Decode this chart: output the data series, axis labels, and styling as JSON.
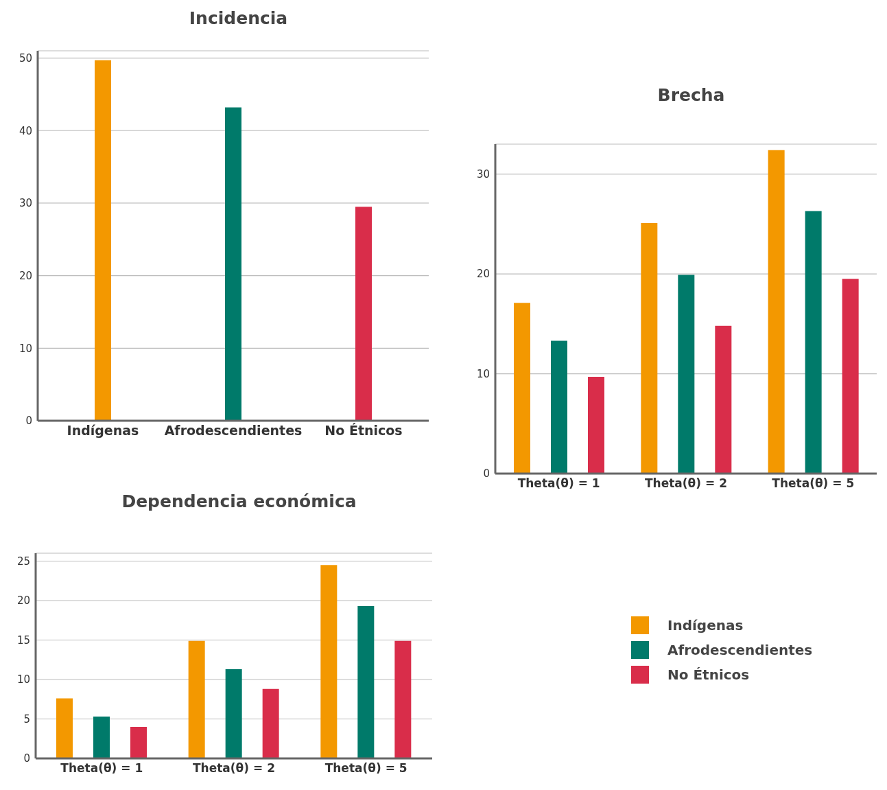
{
  "chart_data": [
    {
      "type": "bar",
      "title": "Incidencia",
      "categories": [
        "Indígenas",
        "Afrodescendientes",
        "No Étnicos"
      ],
      "values": [
        49.7,
        43.2,
        29.5
      ],
      "colors": [
        "#f39800",
        "#007a6a",
        "#d92d4a"
      ],
      "ylim": [
        0,
        51
      ],
      "yticks": [
        0,
        10,
        20,
        30,
        40,
        50
      ],
      "grid": "y"
    },
    {
      "type": "bar",
      "title": "Brecha",
      "categories": [
        "Theta(θ) = 1",
        "Theta(θ) = 2",
        "Theta(θ) = 5"
      ],
      "series": [
        {
          "name": "Indígenas",
          "color": "#f39800",
          "values": [
            17.1,
            25.1,
            32.4
          ]
        },
        {
          "name": "Afrodescendientes",
          "color": "#007a6a",
          "values": [
            13.3,
            19.9,
            26.3
          ]
        },
        {
          "name": "No Étnicos",
          "color": "#d92d4a",
          "values": [
            9.7,
            14.8,
            19.5
          ]
        }
      ],
      "ylim": [
        0,
        33
      ],
      "yticks": [
        0,
        10,
        20,
        30
      ],
      "grid": "y",
      "legend": "bottom"
    },
    {
      "type": "bar",
      "title": "Dependencia económica",
      "categories": [
        "Theta(θ) = 1",
        "Theta(θ) = 2",
        "Theta(θ) = 5"
      ],
      "series": [
        {
          "color": "#f39800",
          "values": [
            7.6,
            14.9,
            24.5
          ]
        },
        {
          "color": "#007a6a",
          "values": [
            5.3,
            11.3,
            19.3
          ]
        },
        {
          "color": "#d92d4a",
          "values": [
            4.0,
            8.8,
            14.9
          ]
        }
      ],
      "ylim": [
        0,
        26
      ],
      "yticks": [
        0,
        5,
        10,
        15,
        20,
        25
      ],
      "grid": "y"
    }
  ]
}
